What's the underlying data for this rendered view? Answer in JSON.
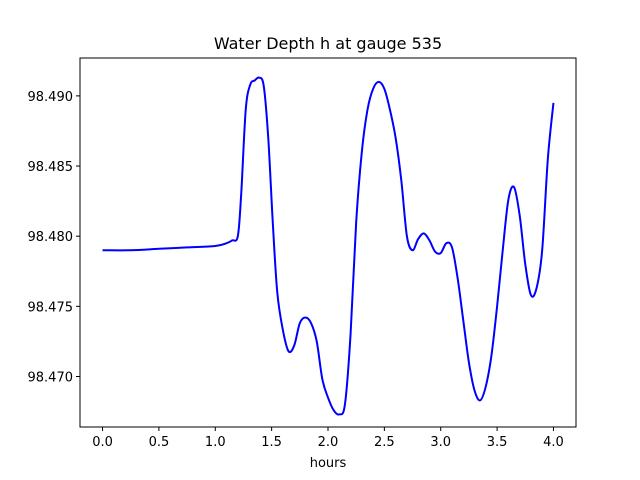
{
  "chart_data": {
    "type": "line",
    "title": "Water Depth h at gauge 535",
    "xlabel": "hours",
    "ylabel": "",
    "xlim": [
      -0.2,
      4.2
    ],
    "ylim": [
      98.4664,
      98.4927
    ],
    "grid": false,
    "xticks": [
      0.0,
      0.5,
      1.0,
      1.5,
      2.0,
      2.5,
      3.0,
      3.5,
      4.0
    ],
    "xtick_labels": [
      "0.0",
      "0.5",
      "1.0",
      "1.5",
      "2.0",
      "2.5",
      "3.0",
      "3.5",
      "4.0"
    ],
    "yticks": [
      98.47,
      98.475,
      98.48,
      98.485,
      98.49
    ],
    "ytick_labels": [
      "98.470",
      "98.475",
      "98.480",
      "98.485",
      "98.490"
    ],
    "line_color": "#0000ff",
    "series": [
      {
        "x": [
          0.0,
          0.25,
          0.5,
          0.75,
          1.0,
          1.1,
          1.15,
          1.2,
          1.23,
          1.27,
          1.31,
          1.35,
          1.39,
          1.43,
          1.47,
          1.51,
          1.55,
          1.6,
          1.65,
          1.7,
          1.75,
          1.8,
          1.85,
          1.9,
          1.95,
          2.0,
          2.05,
          2.1,
          2.15,
          2.2,
          2.25,
          2.3,
          2.35,
          2.4,
          2.45,
          2.5,
          2.55,
          2.6,
          2.65,
          2.7,
          2.75,
          2.8,
          2.85,
          2.9,
          2.95,
          3.0,
          3.05,
          3.1,
          3.15,
          3.2,
          3.25,
          3.3,
          3.35,
          3.4,
          3.45,
          3.5,
          3.55,
          3.6,
          3.65,
          3.7,
          3.75,
          3.8,
          3.85,
          3.9,
          3.95,
          4.0
        ],
        "y": [
          98.479,
          98.479,
          98.4791,
          98.4792,
          98.4793,
          98.4795,
          98.4797,
          98.48,
          98.483,
          98.489,
          98.4908,
          98.4911,
          98.4913,
          98.4907,
          98.487,
          98.481,
          98.476,
          98.4733,
          98.4718,
          98.4722,
          98.4738,
          98.4742,
          98.4738,
          98.4725,
          98.4698,
          98.4685,
          98.4676,
          98.4673,
          98.468,
          98.473,
          98.481,
          98.486,
          98.489,
          98.4905,
          98.491,
          98.4905,
          98.489,
          98.487,
          98.484,
          98.48,
          98.479,
          98.4798,
          98.4802,
          98.4797,
          98.4789,
          98.4788,
          98.4795,
          98.4792,
          98.477,
          98.474,
          98.471,
          98.469,
          98.4683,
          98.4693,
          98.4715,
          98.475,
          98.479,
          98.4826,
          98.4835,
          98.4815,
          98.478,
          98.4758,
          98.4763,
          98.479,
          98.4855,
          98.4895
        ]
      }
    ]
  }
}
